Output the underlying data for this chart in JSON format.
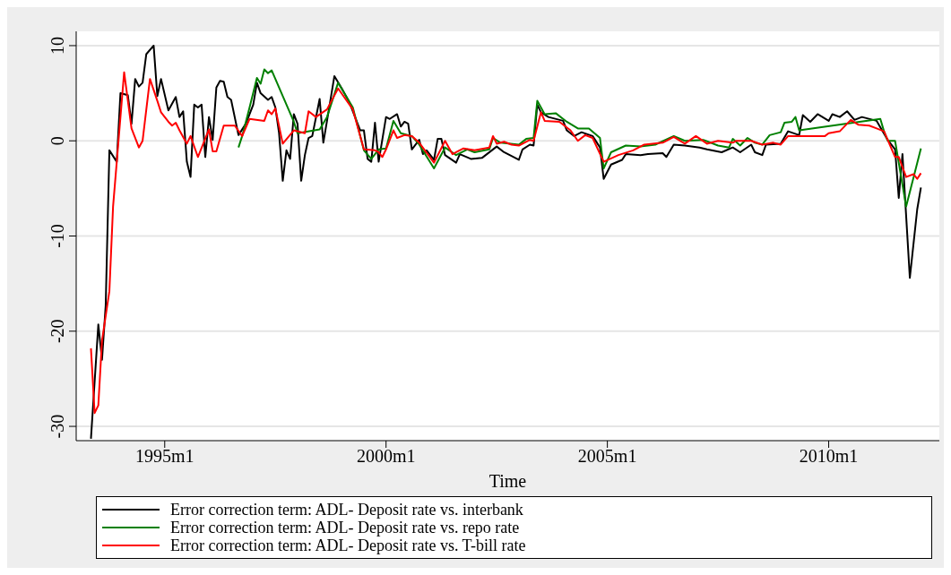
{
  "chart_data": {
    "type": "line",
    "xlabel": "Time",
    "xlim": [
      "1993-01",
      "2012-07"
    ],
    "xticks": [
      {
        "value": "1995-01",
        "label": "1995m1"
      },
      {
        "value": "2000-01",
        "label": "2000m1"
      },
      {
        "value": "2005-01",
        "label": "2005m1"
      },
      {
        "value": "2010-01",
        "label": "2010m1"
      }
    ],
    "ylim": [
      -31.5,
      11.5
    ],
    "yticks": [
      -30,
      -20,
      -10,
      0,
      10
    ],
    "grid": "y",
    "legend": "bottom",
    "line_style": "solid",
    "marker": "none",
    "series": [
      {
        "name": "Error correction term: ADL- Deposit rate vs. interbank",
        "color": "#000000",
        "x": [
          "1993-05",
          "1993-07",
          "1993-08",
          "1993-09",
          "1993-10",
          "1993-12",
          "1994-01",
          "1994-03",
          "1994-04",
          "1994-05",
          "1994-06",
          "1994-07",
          "1994-08",
          "1994-10",
          "1994-11",
          "1994-12",
          "1995-02",
          "1995-04",
          "1995-05",
          "1995-06",
          "1995-07",
          "1995-08",
          "1995-09",
          "1995-10",
          "1995-11",
          "1995-12",
          "1996-01",
          "1996-02",
          "1996-03",
          "1996-04",
          "1996-05",
          "1996-06",
          "1996-07",
          "1996-09",
          "1996-11",
          "1997-01",
          "1997-02",
          "1997-03",
          "1997-05",
          "1997-06",
          "1997-07",
          "1997-08",
          "1997-09",
          "1997-10",
          "1997-11",
          "1997-12",
          "1998-01",
          "1998-02",
          "1998-03",
          "1998-04",
          "1998-05",
          "1998-07",
          "1998-08",
          "1998-09",
          "1998-11",
          "1999-01",
          "1999-03",
          "1999-06",
          "1999-07",
          "1999-08",
          "1999-09",
          "1999-10",
          "1999-11",
          "2000-01",
          "2000-02",
          "2000-04",
          "2000-05",
          "2000-06",
          "2000-07",
          "2000-08",
          "2000-10",
          "2000-11",
          "2000-12",
          "2001-02",
          "2001-03",
          "2001-04",
          "2001-05",
          "2001-08",
          "2001-09",
          "2001-12",
          "2002-03",
          "2002-07",
          "2002-09",
          "2003-01",
          "2003-02",
          "2003-04",
          "2003-05",
          "2003-06",
          "2003-07",
          "2003-09",
          "2004-01",
          "2004-02",
          "2004-04",
          "2004-06",
          "2004-09",
          "2004-11",
          "2004-12",
          "2005-02",
          "2005-05",
          "2005-06",
          "2005-10",
          "2005-12",
          "2006-04",
          "2006-05",
          "2006-07",
          "2006-10",
          "2007-02",
          "2007-04",
          "2007-08",
          "2007-11",
          "2008-01",
          "2008-04",
          "2008-05",
          "2008-07",
          "2008-08",
          "2008-12",
          "2009-02",
          "2009-05",
          "2009-06",
          "2009-08",
          "2009-10",
          "2010-01",
          "2010-02",
          "2010-04",
          "2010-06",
          "2010-08",
          "2010-10",
          "2011-02",
          "2011-05",
          "2011-07",
          "2011-08",
          "2011-09",
          "2011-11",
          "2012-01",
          "2012-02"
        ],
        "values": [
          -31.3,
          -19.3,
          -23,
          -17.3,
          -1,
          -2.2,
          5,
          4.8,
          1.8,
          6.5,
          5.7,
          6.1,
          9.1,
          10,
          4.7,
          6.5,
          3.2,
          4.6,
          2.5,
          3.1,
          -2.2,
          -3.8,
          3.8,
          3.5,
          3.8,
          -1.7,
          2.5,
          0.1,
          5.6,
          6.3,
          6.2,
          4.6,
          4.3,
          0.6,
          1.8,
          3.8,
          6.1,
          5,
          4.3,
          4.6,
          3.5,
          0.8,
          -4.2,
          -1,
          -1.9,
          2.8,
          1.8,
          -4.2,
          -1.5,
          0.3,
          0.5,
          4.4,
          -0.2,
          2.1,
          6.8,
          5.5,
          4.1,
          1.1,
          1.1,
          -1.9,
          -2.2,
          1.9,
          -2.2,
          2.5,
          2.3,
          2.8,
          1.5,
          2,
          1.8,
          -0.9,
          0.1,
          -1.4,
          -1,
          -2,
          0.2,
          0.2,
          -1.5,
          -2.3,
          -1.4,
          -1.9,
          -1.8,
          -0.6,
          -1.2,
          -2,
          -0.9,
          -0.4,
          -0.5,
          3.8,
          3,
          2.5,
          2.1,
          1.1,
          0.5,
          0.9,
          0.5,
          -0.7,
          -4,
          -2.5,
          -2,
          -1.4,
          -1.5,
          -1.4,
          -1.3,
          -1.7,
          -0.4,
          -0.5,
          -0.7,
          -0.9,
          -1.2,
          -0.7,
          -1.2,
          -0.4,
          -1.2,
          -1.5,
          -0.4,
          -0.3,
          1,
          0.6,
          2.7,
          2,
          2.8,
          2.1,
          2.8,
          2.5,
          3.1,
          2.2,
          2.5,
          2.1,
          0.1,
          -0.9,
          -6,
          -1.4,
          -14.4,
          -7.2,
          -4.9
        ]
      },
      {
        "name": "Error correction term: ADL- Deposit rate vs. repo rate",
        "color": "#008000",
        "x": [
          "1996-09",
          "1996-10",
          "1996-12",
          "1997-02",
          "1997-03",
          "1997-04",
          "1997-05",
          "1997-06",
          "1997-12",
          "1998-01",
          "1998-07",
          "1998-09",
          "1998-12",
          "1999-04",
          "1999-07",
          "1999-09",
          "1999-11",
          "2000-01",
          "2000-03",
          "2000-05",
          "2000-08",
          "2000-10",
          "2001-02",
          "2001-05",
          "2001-08",
          "2001-11",
          "2002-01",
          "2002-05",
          "2002-06",
          "2002-08",
          "2003-01",
          "2003-03",
          "2003-05",
          "2003-06",
          "2003-08",
          "2003-11",
          "2004-02",
          "2004-05",
          "2004-08",
          "2004-11",
          "2004-12",
          "2005-02",
          "2005-06",
          "2005-10",
          "2006-02",
          "2006-07",
          "2006-10",
          "2007-03",
          "2007-07",
          "2007-10",
          "2007-11",
          "2008-01",
          "2008-03",
          "2008-05",
          "2008-07",
          "2008-09",
          "2008-12",
          "2009-01",
          "2009-03",
          "2009-04",
          "2009-05",
          "2011-03",
          "2011-04",
          "2011-05",
          "2011-07",
          "2011-10",
          "2012-02"
        ],
        "values": [
          -0.7,
          0.5,
          3.5,
          6.6,
          6,
          7.5,
          7.1,
          7.4,
          2,
          0.8,
          1.2,
          2.5,
          6.1,
          3.5,
          -1,
          -1.9,
          -0.9,
          -0.8,
          2.1,
          0.8,
          0.5,
          -0.4,
          -2.9,
          -0.7,
          -1.5,
          -0.9,
          -1.2,
          -0.9,
          0.3,
          -0.2,
          -0.4,
          0.2,
          0.3,
          4.2,
          2.8,
          2.9,
          2,
          1.3,
          1.3,
          0.3,
          -2.9,
          -1.2,
          -0.5,
          -0.6,
          -0.4,
          0.5,
          0,
          0.1,
          -0.5,
          -0.7,
          0.2,
          -0.5,
          0.3,
          -0.2,
          -0.4,
          0.6,
          0.9,
          1.9,
          2,
          2.5,
          1.1,
          2.3,
          1,
          0,
          0,
          -6.9,
          -0.8
        ]
      },
      {
        "name": "Error correction term: ADL- Deposit rate vs. T-bill rate",
        "color": "#ff0000",
        "x": [
          "1993-05",
          "1993-06",
          "1993-07",
          "1993-08",
          "1993-10",
          "1993-11",
          "1993-12",
          "1994-02",
          "1994-04",
          "1994-06",
          "1994-07",
          "1994-09",
          "1994-11",
          "1994-12",
          "1995-01",
          "1995-02",
          "1995-03",
          "1995-04",
          "1995-05",
          "1995-07",
          "1995-08",
          "1995-10",
          "1996-01",
          "1996-02",
          "1996-03",
          "1996-05",
          "1996-08",
          "1996-10",
          "1996-12",
          "1997-04",
          "1997-05",
          "1997-06",
          "1997-07",
          "1997-09",
          "1997-12",
          "1998-03",
          "1998-04",
          "1998-06",
          "1998-09",
          "1998-12",
          "1999-04",
          "1999-07",
          "1999-10",
          "1999-11",
          "1999-12",
          "2000-01",
          "2000-03",
          "2000-04",
          "2000-06",
          "2000-08",
          "2000-10",
          "2001-02",
          "2001-05",
          "2001-07",
          "2001-10",
          "2002-01",
          "2002-05",
          "2002-06",
          "2002-07",
          "2002-09",
          "2002-11",
          "2003-01",
          "2003-04",
          "2003-05",
          "2003-07",
          "2003-08",
          "2003-12",
          "2004-03",
          "2004-05",
          "2004-07",
          "2004-09",
          "2004-12",
          "2005-04",
          "2005-08",
          "2005-11",
          "2006-04",
          "2006-07",
          "2006-10",
          "2007-01",
          "2007-04",
          "2007-07",
          "2007-11",
          "2007-12",
          "2008-04",
          "2008-07",
          "2008-10",
          "2008-12",
          "2009-02",
          "2009-05",
          "2009-08",
          "2009-12",
          "2010-01",
          "2010-04",
          "2010-07",
          "2010-09",
          "2010-12",
          "2011-02",
          "2011-04",
          "2011-07",
          "2011-08",
          "2011-10",
          "2011-12",
          "2012-01",
          "2012-02"
        ],
        "values": [
          -21.8,
          -28.6,
          -27.8,
          -21,
          -15.8,
          -6.9,
          -2.2,
          7.2,
          1.3,
          -0.7,
          0,
          6.5,
          4.2,
          3,
          2.5,
          2,
          1.6,
          1.9,
          1.1,
          -0.3,
          0.5,
          -1.7,
          1.2,
          -1.1,
          -1.1,
          1.6,
          1.6,
          0.5,
          2.3,
          2.1,
          3.2,
          2.8,
          3.4,
          -0.3,
          1.1,
          0.8,
          3.1,
          2.5,
          3.3,
          5.5,
          3.3,
          -0.9,
          -1,
          -1.2,
          -1.7,
          -0.9,
          1.1,
          0.3,
          0.6,
          0.5,
          -0.2,
          -2.3,
          0,
          -1.4,
          -0.8,
          -1,
          -0.7,
          0.5,
          -0.3,
          -0.1,
          -0.4,
          -0.5,
          0.1,
          0,
          3,
          2.1,
          2,
          1.1,
          0,
          0.6,
          0.3,
          -2.2,
          -1.5,
          -1,
          -0.4,
          -0.2,
          0.4,
          -0.3,
          0.5,
          -0.3,
          0,
          -0.2,
          0,
          0,
          -0.4,
          -0.2,
          -0.4,
          0.5,
          0.5,
          0.5,
          0.5,
          0.8,
          1,
          2.2,
          1.7,
          1.6,
          1.3,
          1,
          -1.7,
          -1.7,
          -3.8,
          -3.5,
          -4,
          -3.4
        ]
      }
    ]
  }
}
